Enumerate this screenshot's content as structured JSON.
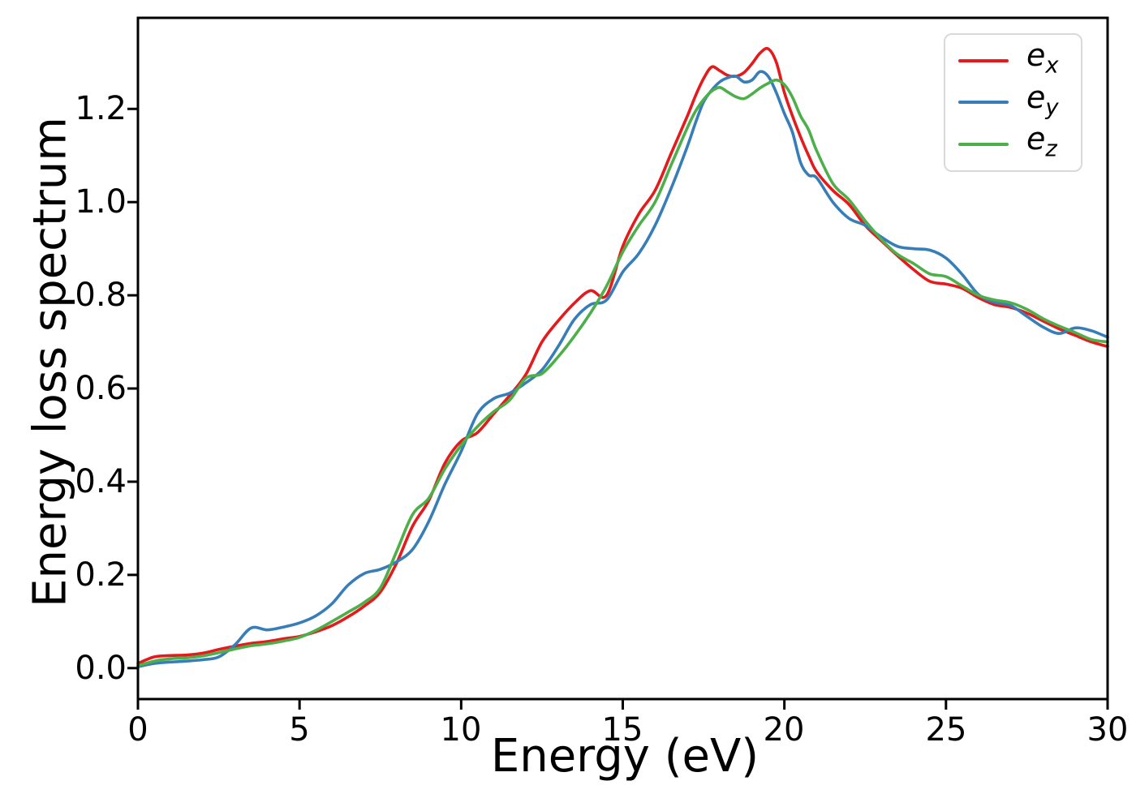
{
  "figure": {
    "background": "#ffffff"
  },
  "chart_data": {
    "type": "line",
    "title": "",
    "xlabel": "Energy (eV)",
    "ylabel": "Energy loss spectrum",
    "xlim": [
      0,
      30
    ],
    "ylim": [
      -0.07,
      1.39
    ],
    "grid": false,
    "legend_position": "upper right",
    "axis_color": "#000000",
    "line_width": 3.6,
    "x_ticks": [
      0,
      5,
      10,
      15,
      20,
      25,
      30
    ],
    "x_tick_labels": [
      "0",
      "5",
      "10",
      "15",
      "20",
      "25",
      "30"
    ],
    "y_ticks": [
      0.0,
      0.2,
      0.4,
      0.6,
      0.8,
      1.0,
      1.2
    ],
    "y_tick_labels": [
      "0.0",
      "0.2",
      "0.4",
      "0.6",
      "0.8",
      "1.0",
      "1.2"
    ],
    "x": [
      0,
      0.5,
      1,
      1.5,
      2,
      2.5,
      3,
      3.5,
      4,
      4.5,
      5,
      5.5,
      6,
      6.5,
      7,
      7.5,
      8,
      8.5,
      9,
      9.5,
      10,
      10.5,
      11,
      11.5,
      12,
      12.5,
      13,
      13.5,
      14,
      14.5,
      15,
      15.5,
      16,
      16.5,
      17,
      17.25,
      17.5,
      17.75,
      18,
      18.25,
      18.5,
      18.75,
      19,
      19.25,
      19.5,
      19.75,
      20,
      20.25,
      20.5,
      20.75,
      21,
      21.5,
      22,
      22.5,
      23,
      23.5,
      24,
      24.5,
      25,
      25.5,
      26,
      26.5,
      27,
      27.5,
      28,
      28.5,
      29,
      29.5,
      30
    ],
    "series": [
      {
        "name": "e_x",
        "label_base": "e",
        "label_sub": "x",
        "color": "#e41a1c",
        "values": [
          0.01,
          0.024,
          0.027,
          0.028,
          0.032,
          0.04,
          0.047,
          0.053,
          0.057,
          0.063,
          0.068,
          0.078,
          0.091,
          0.11,
          0.133,
          0.163,
          0.225,
          0.305,
          0.36,
          0.44,
          0.487,
          0.505,
          0.545,
          0.585,
          0.63,
          0.7,
          0.745,
          0.783,
          0.81,
          0.8,
          0.905,
          0.975,
          1.025,
          1.105,
          1.185,
          1.228,
          1.265,
          1.29,
          1.282,
          1.272,
          1.27,
          1.278,
          1.297,
          1.32,
          1.329,
          1.3,
          1.235,
          1.185,
          1.14,
          1.1,
          1.065,
          1.025,
          0.995,
          0.95,
          0.917,
          0.885,
          0.855,
          0.83,
          0.824,
          0.815,
          0.795,
          0.78,
          0.774,
          0.762,
          0.745,
          0.728,
          0.714,
          0.7,
          0.69
        ]
      },
      {
        "name": "e_y",
        "label_base": "e",
        "label_sub": "y",
        "color": "#377eb8",
        "values": [
          0.003,
          0.01,
          0.013,
          0.015,
          0.018,
          0.024,
          0.05,
          0.086,
          0.082,
          0.088,
          0.097,
          0.112,
          0.138,
          0.178,
          0.203,
          0.212,
          0.228,
          0.255,
          0.315,
          0.395,
          0.465,
          0.545,
          0.578,
          0.59,
          0.612,
          0.64,
          0.69,
          0.748,
          0.78,
          0.79,
          0.85,
          0.89,
          0.95,
          1.03,
          1.12,
          1.17,
          1.215,
          1.24,
          1.258,
          1.267,
          1.27,
          1.258,
          1.262,
          1.28,
          1.27,
          1.235,
          1.19,
          1.15,
          1.085,
          1.058,
          1.052,
          1.0,
          0.965,
          0.95,
          0.925,
          0.905,
          0.9,
          0.897,
          0.88,
          0.845,
          0.802,
          0.785,
          0.778,
          0.755,
          0.732,
          0.718,
          0.73,
          0.724,
          0.71
        ]
      },
      {
        "name": "e_z",
        "label_base": "e",
        "label_sub": "z",
        "color": "#4daf4a",
        "values": [
          0.005,
          0.015,
          0.02,
          0.022,
          0.026,
          0.033,
          0.041,
          0.048,
          0.052,
          0.058,
          0.066,
          0.081,
          0.1,
          0.12,
          0.141,
          0.172,
          0.25,
          0.33,
          0.365,
          0.428,
          0.478,
          0.518,
          0.55,
          0.575,
          0.622,
          0.632,
          0.668,
          0.712,
          0.762,
          0.82,
          0.893,
          0.95,
          1.0,
          1.08,
          1.16,
          1.195,
          1.22,
          1.238,
          1.246,
          1.236,
          1.226,
          1.222,
          1.232,
          1.245,
          1.255,
          1.262,
          1.252,
          1.225,
          1.185,
          1.155,
          1.11,
          1.04,
          1.005,
          0.96,
          0.92,
          0.888,
          0.868,
          0.846,
          0.84,
          0.82,
          0.8,
          0.79,
          0.784,
          0.77,
          0.75,
          0.734,
          0.72,
          0.705,
          0.7
        ]
      }
    ]
  }
}
